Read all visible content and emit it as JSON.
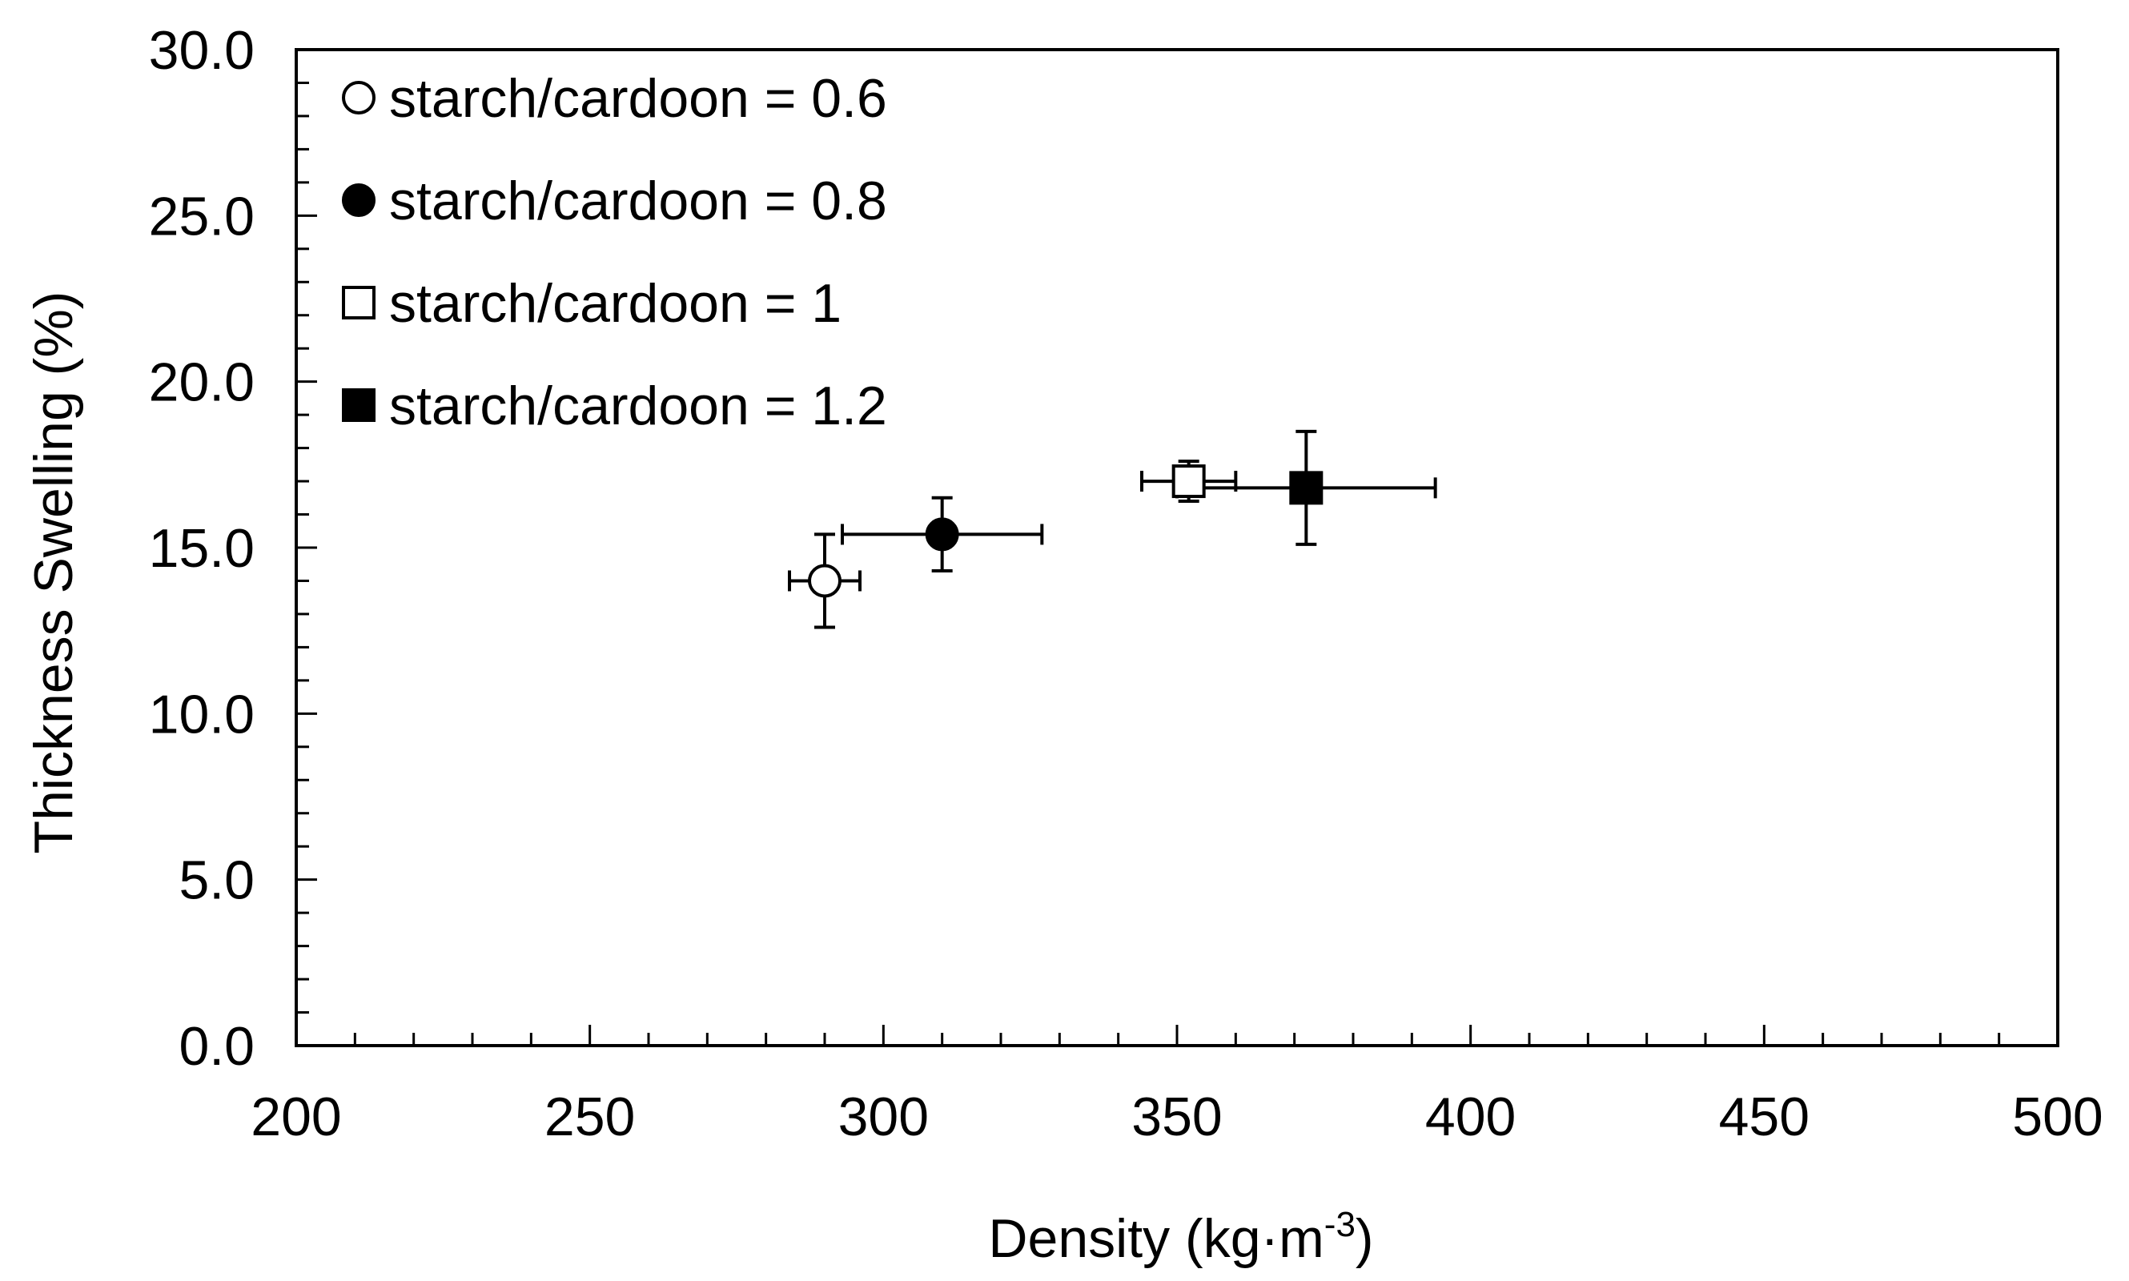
{
  "chart_data": {
    "type": "scatter",
    "xlabel": "Density (kg·m",
    "xlabel_sup": "-3",
    "xlabel_close": ")",
    "ylabel": "Thickness Swelling (%)",
    "xlim": [
      200,
      500
    ],
    "ylim": [
      0,
      30
    ],
    "x_ticks": [
      200,
      250,
      300,
      350,
      400,
      450,
      500
    ],
    "y_ticks": [
      0,
      5,
      10,
      15,
      20,
      25,
      30
    ],
    "x_tick_labels": [
      "200",
      "250",
      "300",
      "350",
      "400",
      "450",
      "500"
    ],
    "y_tick_labels": [
      "0.0",
      "5.0",
      "10.0",
      "15.0",
      "20.0",
      "25.0",
      "30.0"
    ],
    "grid": false,
    "legend_position": "top-left",
    "series": [
      {
        "name": "starch/cardoon = 0.6",
        "marker": "circle-open",
        "x": 290,
        "y": 14.0,
        "x_err": 6,
        "y_err": 1.4
      },
      {
        "name": "starch/cardoon = 0.8",
        "marker": "circle-filled",
        "x": 310,
        "y": 15.4,
        "x_err": 17,
        "y_err": 1.1
      },
      {
        "name": "starch/cardoon = 1",
        "marker": "square-open",
        "x": 352,
        "y": 17.0,
        "x_err": 8,
        "y_err": 0.6
      },
      {
        "name": "starch/cardoon = 1.2",
        "marker": "square-filled",
        "x": 372,
        "y": 16.8,
        "x_err": 22,
        "y_err": 1.7
      }
    ]
  }
}
